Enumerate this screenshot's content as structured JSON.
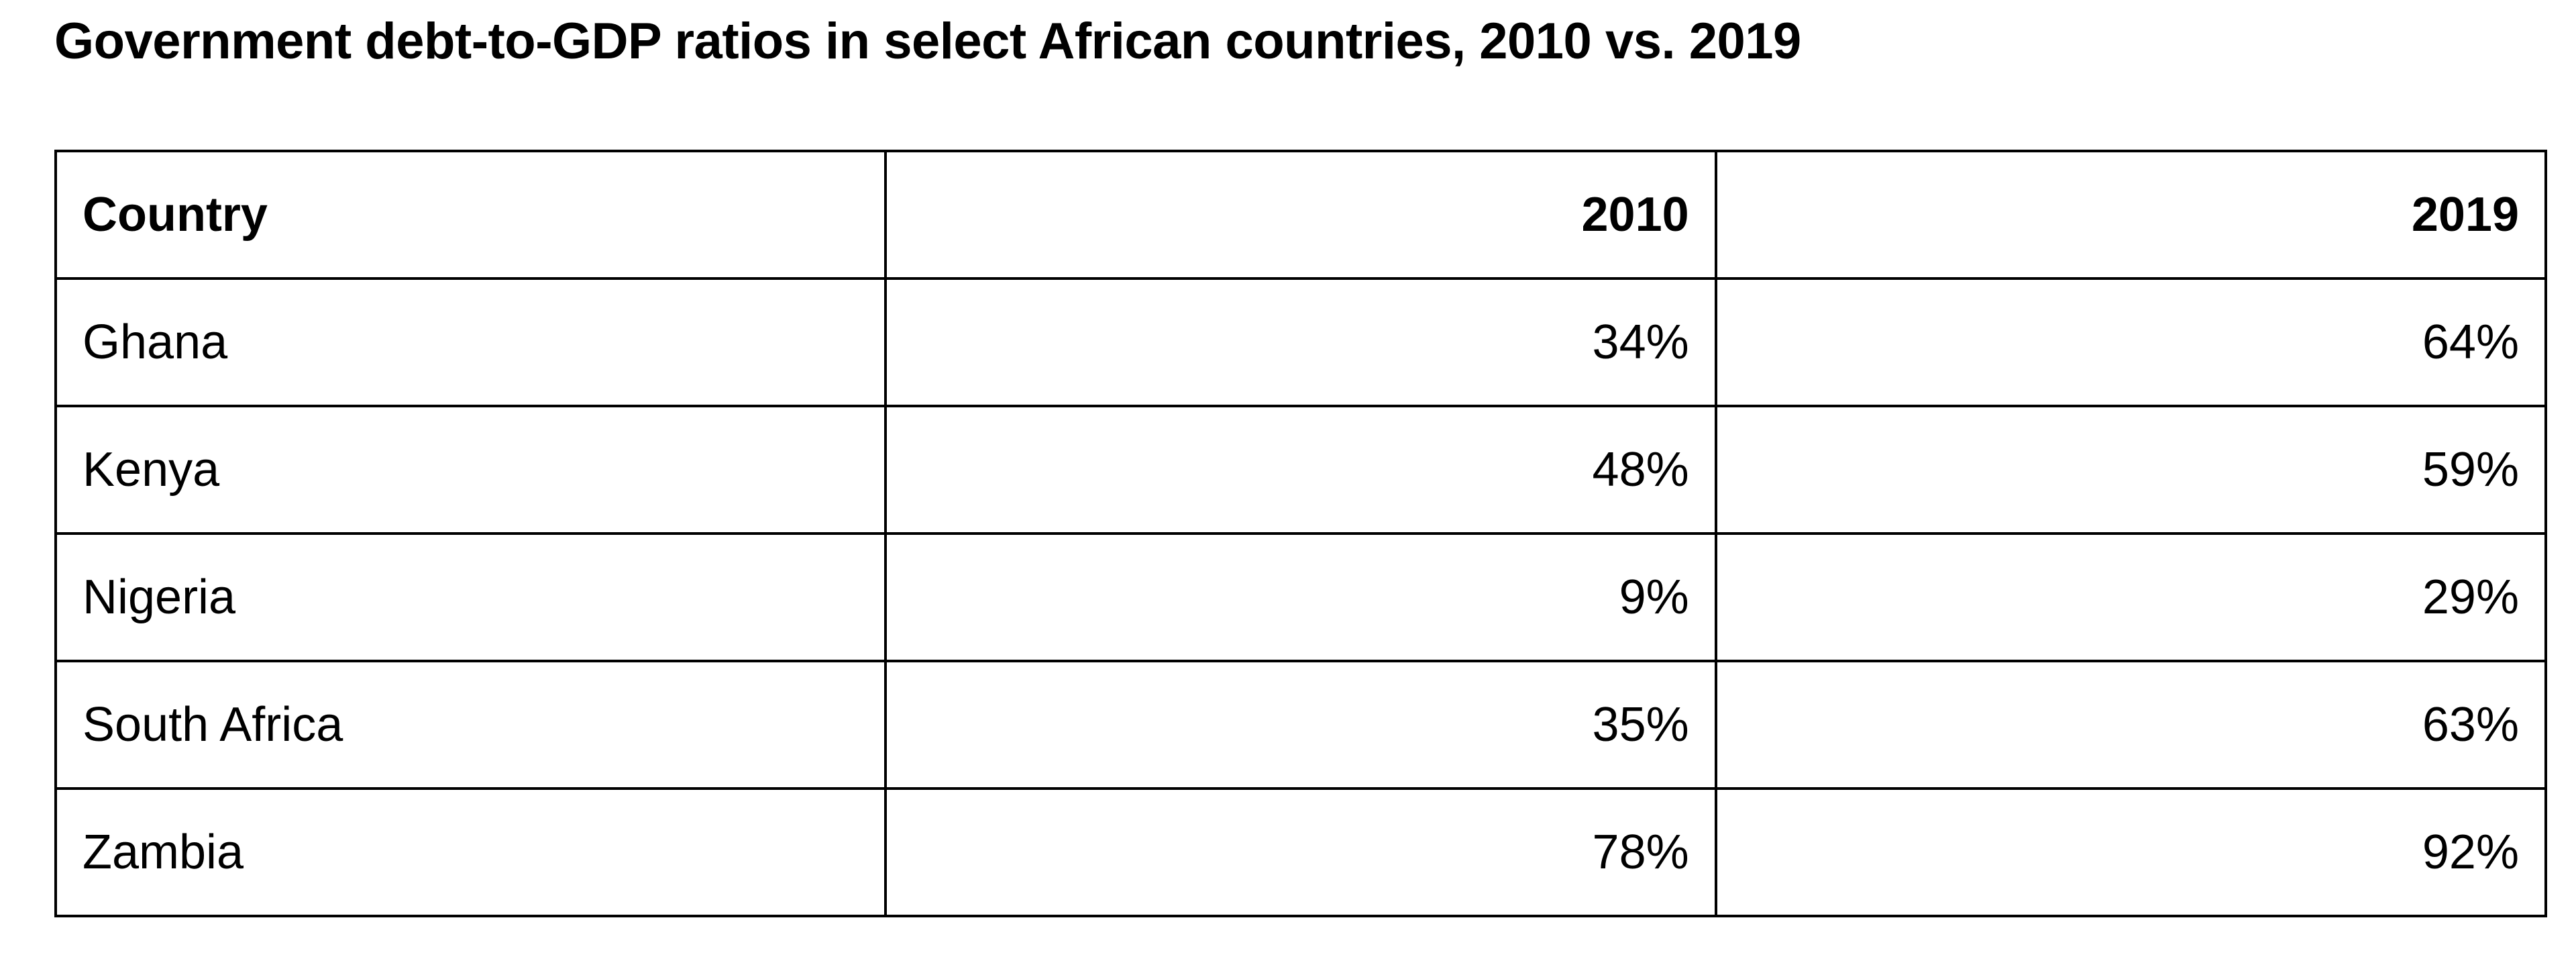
{
  "title": "Government debt-to-GDP ratios in select African countries, 2010 vs. 2019",
  "table": {
    "header": [
      "Country",
      "2010",
      "2019"
    ],
    "rows": [
      [
        "Ghana",
        "34%",
        "64%"
      ],
      [
        "Kenya",
        "48%",
        "59%"
      ],
      [
        "Nigeria",
        "9%",
        "29%"
      ],
      [
        "South Africa",
        "35%",
        "63%"
      ],
      [
        "Zambia",
        "78%",
        "92%"
      ]
    ]
  }
}
